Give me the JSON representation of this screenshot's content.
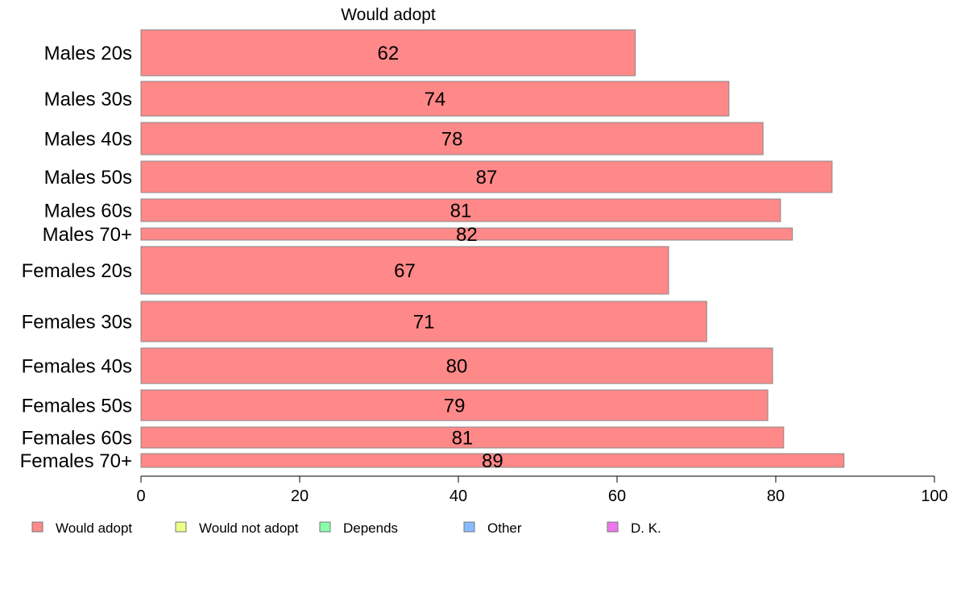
{
  "chart_data": {
    "type": "bar",
    "orientation": "horizontal",
    "title": "",
    "series_title": "Would adopt",
    "categories": [
      "Males 20s",
      "Males 30s",
      "Males 40s",
      "Males 50s",
      "Males 60s",
      "Males 70+",
      "Females 20s",
      "Females 30s",
      "Females 40s",
      "Females 50s",
      "Females 60s",
      "Females 70+"
    ],
    "series": [
      {
        "name": "Would adopt",
        "values": [
          62.3,
          74.1,
          78.4,
          87.1,
          80.6,
          82.1,
          66.5,
          71.3,
          79.6,
          79.0,
          81.0,
          88.6
        ],
        "labels": [
          "62",
          "74",
          "78",
          "87",
          "81",
          "82",
          "67",
          "71",
          "80",
          "79",
          "81",
          "89"
        ]
      }
    ],
    "xlim": [
      0,
      100
    ],
    "xticks": [
      "0",
      "20",
      "40",
      "60",
      "80",
      "100"
    ],
    "xlabel": "",
    "ylabel": "",
    "grid": false,
    "legend_position": "bottom",
    "legend": [
      {
        "label": "Would adopt",
        "color": "#FF8888"
      },
      {
        "label": "Would not adopt",
        "color": "#EEFF88"
      },
      {
        "label": "Depends",
        "color": "#88FFAA"
      },
      {
        "label": "Other",
        "color": "#88BBFF"
      },
      {
        "label": "D. K.",
        "color": "#EE77EE"
      }
    ],
    "bar_color": "#FF8888",
    "bar_border": "#888888"
  }
}
